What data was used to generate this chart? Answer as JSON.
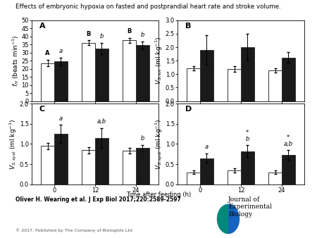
{
  "title": "Effects of embryonic hypoxia on fasted and postprandial heart rate and stroke volume.",
  "citation": "Oliver H. Wearing et al. J Exp Biol 2017;220:2589-2597",
  "copyright": "© 2017. Published by The Company of Biologists Ltd",
  "time_points": [
    0,
    12,
    24
  ],
  "panel_A": {
    "label": "A",
    "ylabel": "$f_H$ (beats min$^{-1}$)",
    "ylim": [
      0,
      50
    ],
    "yticks": [
      0,
      5,
      10,
      15,
      20,
      25,
      30,
      35,
      40,
      45,
      50
    ],
    "white_means": [
      23.5,
      36.0,
      37.5
    ],
    "white_errors": [
      2.0,
      1.5,
      1.5
    ],
    "black_means": [
      24.5,
      32.5,
      34.5
    ],
    "black_errors": [
      2.5,
      3.5,
      2.5
    ],
    "white_labels": [
      "A",
      "B",
      "B"
    ],
    "black_labels": [
      "a",
      "b",
      "b"
    ]
  },
  "panel_B": {
    "label": "B",
    "ylabel": "$V_{S,tot}$ (ml kg$^{-1}$)",
    "ylim": [
      0,
      3.0
    ],
    "yticks": [
      0,
      0.5,
      1.0,
      1.5,
      2.0,
      2.5,
      3.0
    ],
    "white_means": [
      1.22,
      1.2,
      1.15
    ],
    "white_errors": [
      0.08,
      0.1,
      0.08
    ],
    "black_means": [
      1.9,
      2.0,
      1.62
    ],
    "black_errors": [
      0.55,
      0.5,
      0.2
    ],
    "white_labels": [],
    "black_labels": []
  },
  "panel_C": {
    "label": "C",
    "ylabel": "$V_{S,syst}$ (ml kg$^{-1}$)",
    "ylim": [
      0,
      2.0
    ],
    "yticks": [
      0,
      0.5,
      1.0,
      1.5,
      2.0
    ],
    "white_means": [
      0.95,
      0.85,
      0.83
    ],
    "white_errors": [
      0.08,
      0.08,
      0.07
    ],
    "black_means": [
      1.25,
      1.15,
      0.9
    ],
    "black_errors": [
      0.22,
      0.25,
      0.08
    ],
    "white_labels": [],
    "black_labels": [
      "a",
      "a,b",
      "b"
    ]
  },
  "panel_D": {
    "label": "D",
    "ylabel": "$V_{S,syst}$ (ml kg$^{-1}$)",
    "xlabel": "Time after feeding (h)",
    "ylim": [
      0,
      2.0
    ],
    "yticks": [
      0,
      0.5,
      1.0,
      1.5,
      2.0
    ],
    "white_means": [
      0.3,
      0.35,
      0.3
    ],
    "white_errors": [
      0.04,
      0.05,
      0.04
    ],
    "black_means": [
      0.65,
      0.82,
      0.73
    ],
    "black_errors": [
      0.12,
      0.15,
      0.12
    ],
    "white_labels": [],
    "black_labels": [
      "a",
      "*\nb",
      "*\na,b"
    ]
  },
  "bar_width": 0.32,
  "white_color": "#ffffff",
  "black_color": "#1a1a1a",
  "edge_color": "#333333",
  "label_fontsize": 6.0,
  "tick_fontsize": 6.0,
  "ylabel_fontsize": 6.5,
  "annot_fontsize": 6.0,
  "panel_label_fontsize": 8
}
